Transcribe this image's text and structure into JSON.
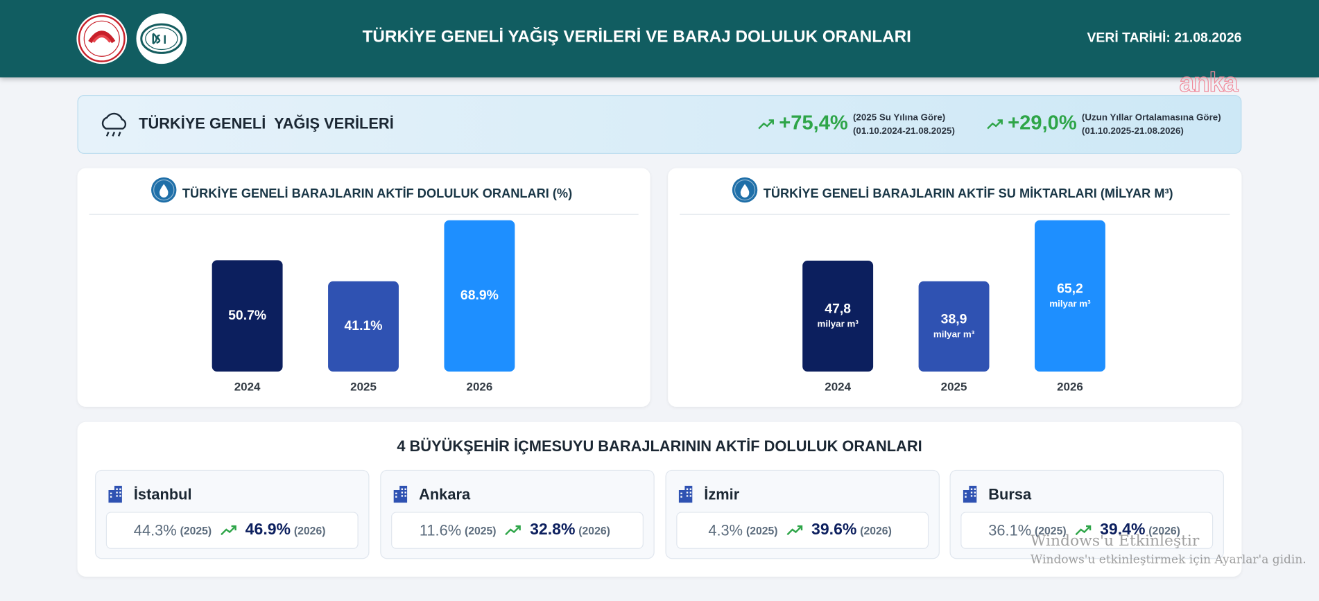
{
  "header": {
    "title": "TÜRKİYE GENELİ YAĞIŞ VERİLERİ VE BARAJ DOLULUK ORANLARI",
    "date_label": "VERİ TARİHİ: 21.08.2026"
  },
  "watermark": "anka",
  "rainfall": {
    "title": "TÜRKİYE GENELİ  YAĞIŞ VERİLERİ",
    "stats": [
      {
        "value": "+75,4%",
        "note": "(2025 Su Yılına Göre)",
        "period": "(01.10.2024-21.08.2025)"
      },
      {
        "value": "+29,0%",
        "note": "(Uzun Yıllar Ortalamasına Göre)",
        "period": "(01.10.2025-21.08.2026)"
      }
    ]
  },
  "charts": [
    {
      "type": "bar",
      "title": "TÜRKİYE GENELİ BARAJLARIN AKTİF DOLULUK ORANLARI (%)",
      "categories": [
        "2024",
        "2025",
        "2026"
      ],
      "values": [
        50.7,
        41.1,
        68.9
      ],
      "value_labels": [
        "50.7%",
        "41.1%",
        "68.9%"
      ],
      "colors": [
        "#0c1f5e",
        "#2f52b2",
        "#1e8fff"
      ]
    },
    {
      "type": "bar",
      "title": "TÜRKİYE GENELİ BARAJLARIN AKTİF SU MİKTARLARI (MİLYAR M³)",
      "categories": [
        "2024",
        "2025",
        "2026"
      ],
      "values": [
        47.8,
        38.9,
        65.2
      ],
      "value_labels": [
        "47,8",
        "38,9",
        "65,2"
      ],
      "unit_label": "milyar m³",
      "colors": [
        "#0c1f5e",
        "#2f52b2",
        "#1e8fff"
      ]
    }
  ],
  "cities": {
    "title": "4 BÜYÜKŞEHİR İÇMESUYU BARAJLARININ AKTİF DOLULUK ORANLARI",
    "items": [
      {
        "name": "İstanbul",
        "value_2025": "44.3%",
        "year_2025": "(2025)",
        "value_2026": "46.9%",
        "year_2026": "(2026)"
      },
      {
        "name": "Ankara",
        "value_2025": "11.6%",
        "year_2025": "(2025)",
        "value_2026": "32.8%",
        "year_2026": "(2026)"
      },
      {
        "name": "İzmir",
        "value_2025": "4.3%",
        "year_2025": "(2025)",
        "value_2026": "39.6%",
        "year_2026": "(2026)"
      },
      {
        "name": "Bursa",
        "value_2025": "36.1%",
        "year_2025": "(2025)",
        "value_2026": "39.4%",
        "year_2026": "(2026)"
      }
    ]
  },
  "os_notice": {
    "title": "Windows'u Etkinleştir",
    "text": "Windows'u etkinleştirmek için Ayarlar'a gidin."
  }
}
